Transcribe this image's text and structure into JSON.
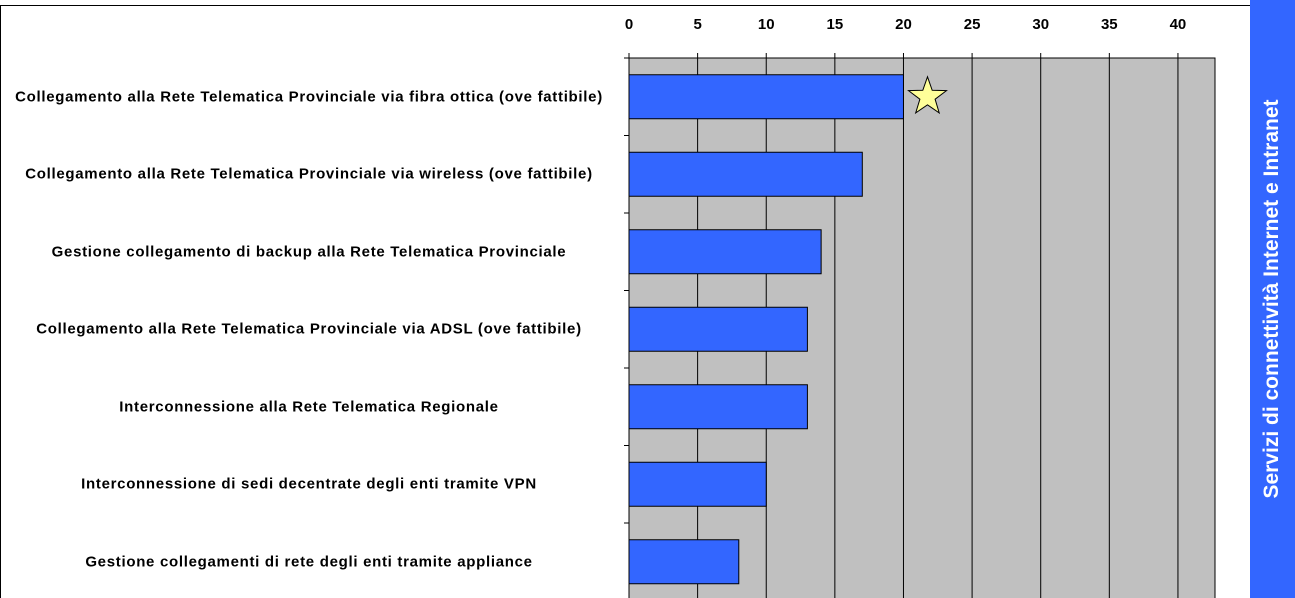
{
  "chart_data": {
    "type": "barh",
    "group_label": "Servizi di connettività Internet e Intranet",
    "categories": [
      "Collegamento alla Rete Telematica Provinciale via fibra ottica (ove fattibile)",
      "Collegamento alla Rete Telematica Provinciale via wireless (ove fattibile)",
      "Gestione collegamento di backup alla Rete Telematica Provinciale",
      "Collegamento alla Rete Telematica Provinciale via ADSL (ove fattibile)",
      "Interconnessione alla Rete Telematica Regionale",
      "Interconnessione di sedi decentrate degli enti tramite VPN",
      "Gestione collegamenti di rete degli enti tramite appliance"
    ],
    "values": [
      20,
      17,
      14,
      13,
      13,
      10,
      8
    ],
    "color": "#3366ff",
    "xlim": [
      0,
      42.7
    ],
    "xticks": [
      0,
      5,
      10,
      15,
      20,
      25,
      30,
      35,
      40
    ],
    "grid": true
  }
}
